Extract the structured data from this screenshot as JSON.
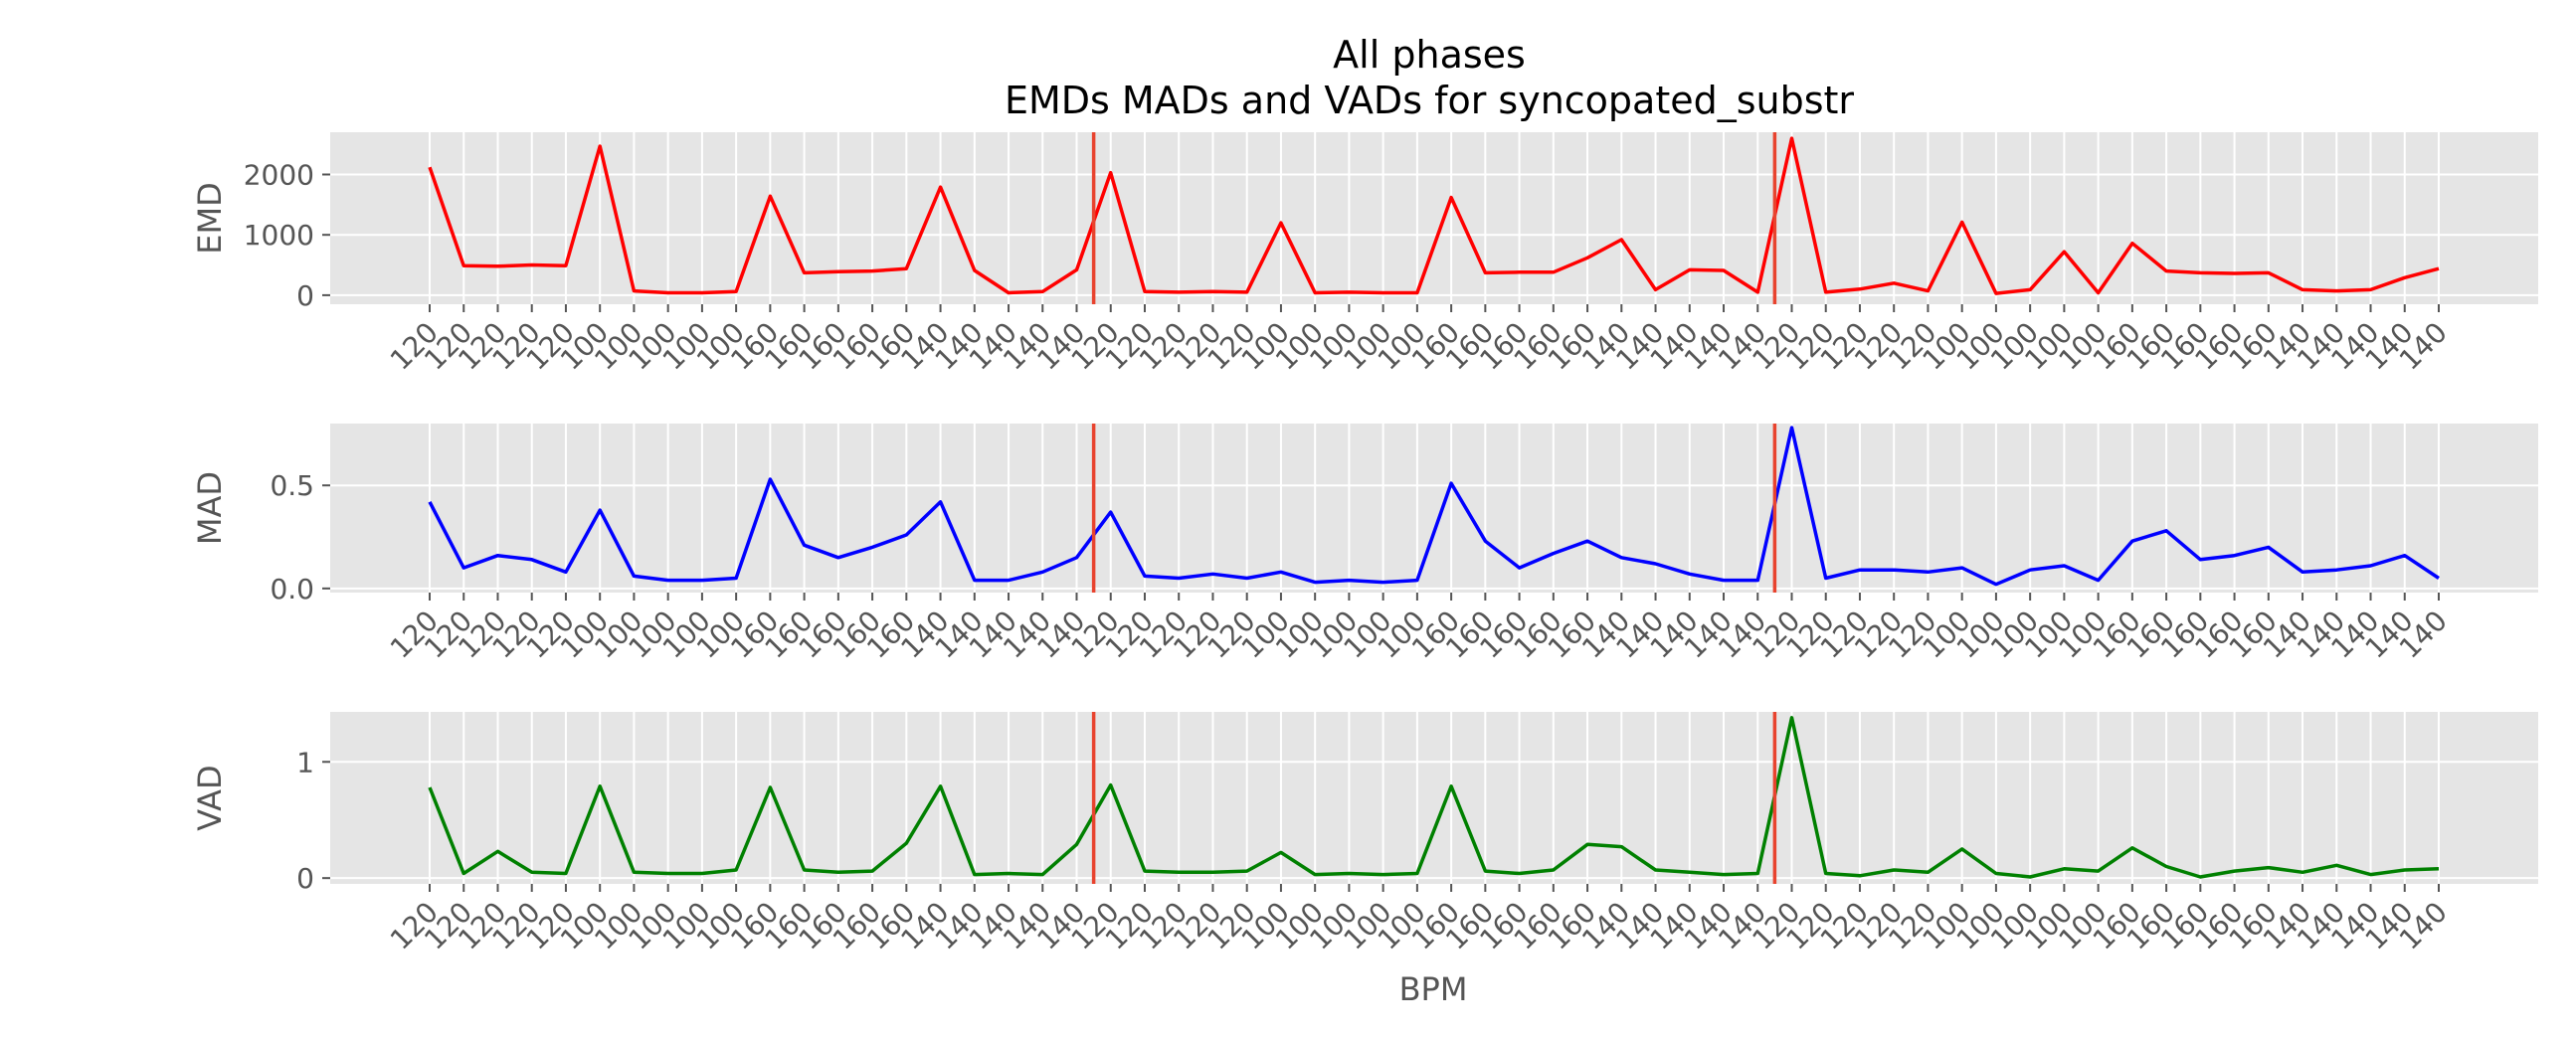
{
  "figure": {
    "title_line1": "All phases",
    "title_line2": "EMDs MADs and VADs for syncopated_substr",
    "xlabel": "BPM"
  },
  "chart_data": [
    {
      "type": "line",
      "ylabel": "EMD",
      "color": "#ff0000",
      "yticks": [
        0,
        1000,
        2000
      ],
      "ytick_labels": [
        "0",
        "1000",
        "2000"
      ],
      "ylim": [
        -150,
        2700
      ],
      "categories": [
        "120",
        "120",
        "120",
        "120",
        "120",
        "100",
        "100",
        "100",
        "100",
        "100",
        "160",
        "160",
        "160",
        "160",
        "160",
        "140",
        "140",
        "140",
        "140",
        "140",
        "120",
        "120",
        "120",
        "120",
        "120",
        "100",
        "100",
        "100",
        "100",
        "100",
        "160",
        "160",
        "160",
        "160",
        "160",
        "140",
        "140",
        "140",
        "140",
        "140",
        "120",
        "120",
        "120",
        "120",
        "120",
        "100",
        "100",
        "100",
        "100",
        "100",
        "160",
        "160",
        "160",
        "160",
        "160",
        "140",
        "140",
        "140",
        "140",
        "140"
      ],
      "values": [
        2120,
        490,
        480,
        500,
        490,
        2470,
        70,
        40,
        40,
        60,
        1640,
        370,
        390,
        400,
        440,
        1790,
        410,
        40,
        60,
        420,
        2030,
        60,
        50,
        60,
        50,
        1200,
        40,
        50,
        40,
        40,
        1620,
        370,
        380,
        380,
        620,
        920,
        90,
        420,
        410,
        50,
        2600,
        50,
        100,
        200,
        70,
        1210,
        30,
        90,
        720,
        40,
        860,
        400,
        370,
        360,
        370,
        90,
        70,
        90,
        290,
        440
      ],
      "vlines_at_index": [
        19.5,
        39.5
      ],
      "grid": true
    },
    {
      "type": "line",
      "ylabel": "MAD",
      "color": "#0000ff",
      "yticks": [
        0.0,
        0.5
      ],
      "ytick_labels": [
        "0.0",
        "0.5"
      ],
      "ylim": [
        -0.02,
        0.8
      ],
      "categories": [
        "120",
        "120",
        "120",
        "120",
        "120",
        "100",
        "100",
        "100",
        "100",
        "100",
        "160",
        "160",
        "160",
        "160",
        "160",
        "140",
        "140",
        "140",
        "140",
        "140",
        "120",
        "120",
        "120",
        "120",
        "120",
        "100",
        "100",
        "100",
        "100",
        "100",
        "160",
        "160",
        "160",
        "160",
        "160",
        "140",
        "140",
        "140",
        "140",
        "140",
        "120",
        "120",
        "120",
        "120",
        "120",
        "100",
        "100",
        "100",
        "100",
        "100",
        "160",
        "160",
        "160",
        "160",
        "160",
        "140",
        "140",
        "140",
        "140",
        "140"
      ],
      "values": [
        0.42,
        0.1,
        0.16,
        0.14,
        0.08,
        0.38,
        0.06,
        0.04,
        0.04,
        0.05,
        0.53,
        0.21,
        0.15,
        0.2,
        0.26,
        0.42,
        0.04,
        0.04,
        0.08,
        0.15,
        0.37,
        0.06,
        0.05,
        0.07,
        0.05,
        0.08,
        0.03,
        0.04,
        0.03,
        0.04,
        0.51,
        0.23,
        0.1,
        0.17,
        0.23,
        0.15,
        0.12,
        0.07,
        0.04,
        0.04,
        0.78,
        0.05,
        0.09,
        0.09,
        0.08,
        0.1,
        0.02,
        0.09,
        0.11,
        0.04,
        0.23,
        0.28,
        0.14,
        0.16,
        0.2,
        0.08,
        0.09,
        0.11,
        0.16,
        0.05
      ],
      "vlines_at_index": [
        19.5,
        39.5
      ],
      "grid": true
    },
    {
      "type": "line",
      "ylabel": "VAD",
      "color": "#008000",
      "yticks": [
        0,
        1
      ],
      "ytick_labels": [
        "0",
        "1"
      ],
      "ylim": [
        -0.05,
        1.43
      ],
      "categories": [
        "120",
        "120",
        "120",
        "120",
        "120",
        "100",
        "100",
        "100",
        "100",
        "100",
        "160",
        "160",
        "160",
        "160",
        "160",
        "140",
        "140",
        "140",
        "140",
        "140",
        "120",
        "120",
        "120",
        "120",
        "120",
        "100",
        "100",
        "100",
        "100",
        "100",
        "160",
        "160",
        "160",
        "160",
        "160",
        "140",
        "140",
        "140",
        "140",
        "140",
        "120",
        "120",
        "120",
        "120",
        "120",
        "100",
        "100",
        "100",
        "100",
        "100",
        "160",
        "160",
        "160",
        "160",
        "160",
        "140",
        "140",
        "140",
        "140",
        "140"
      ],
      "values": [
        0.78,
        0.04,
        0.23,
        0.05,
        0.04,
        0.79,
        0.05,
        0.04,
        0.04,
        0.07,
        0.78,
        0.07,
        0.05,
        0.06,
        0.3,
        0.79,
        0.03,
        0.04,
        0.03,
        0.29,
        0.8,
        0.06,
        0.05,
        0.05,
        0.06,
        0.22,
        0.03,
        0.04,
        0.03,
        0.04,
        0.79,
        0.06,
        0.04,
        0.07,
        0.29,
        0.27,
        0.07,
        0.05,
        0.03,
        0.04,
        1.38,
        0.04,
        0.02,
        0.07,
        0.05,
        0.25,
        0.04,
        0.01,
        0.08,
        0.06,
        0.26,
        0.1,
        0.01,
        0.06,
        0.09,
        0.05,
        0.11,
        0.03,
        0.07,
        0.08
      ],
      "vlines_at_index": [
        19.5,
        39.5
      ],
      "grid": true
    }
  ],
  "style": {
    "panel_bg": "#e5e5e5",
    "grid_color": "#ffffff",
    "vline_color": "#e8432e",
    "tick_color": "#555555"
  }
}
